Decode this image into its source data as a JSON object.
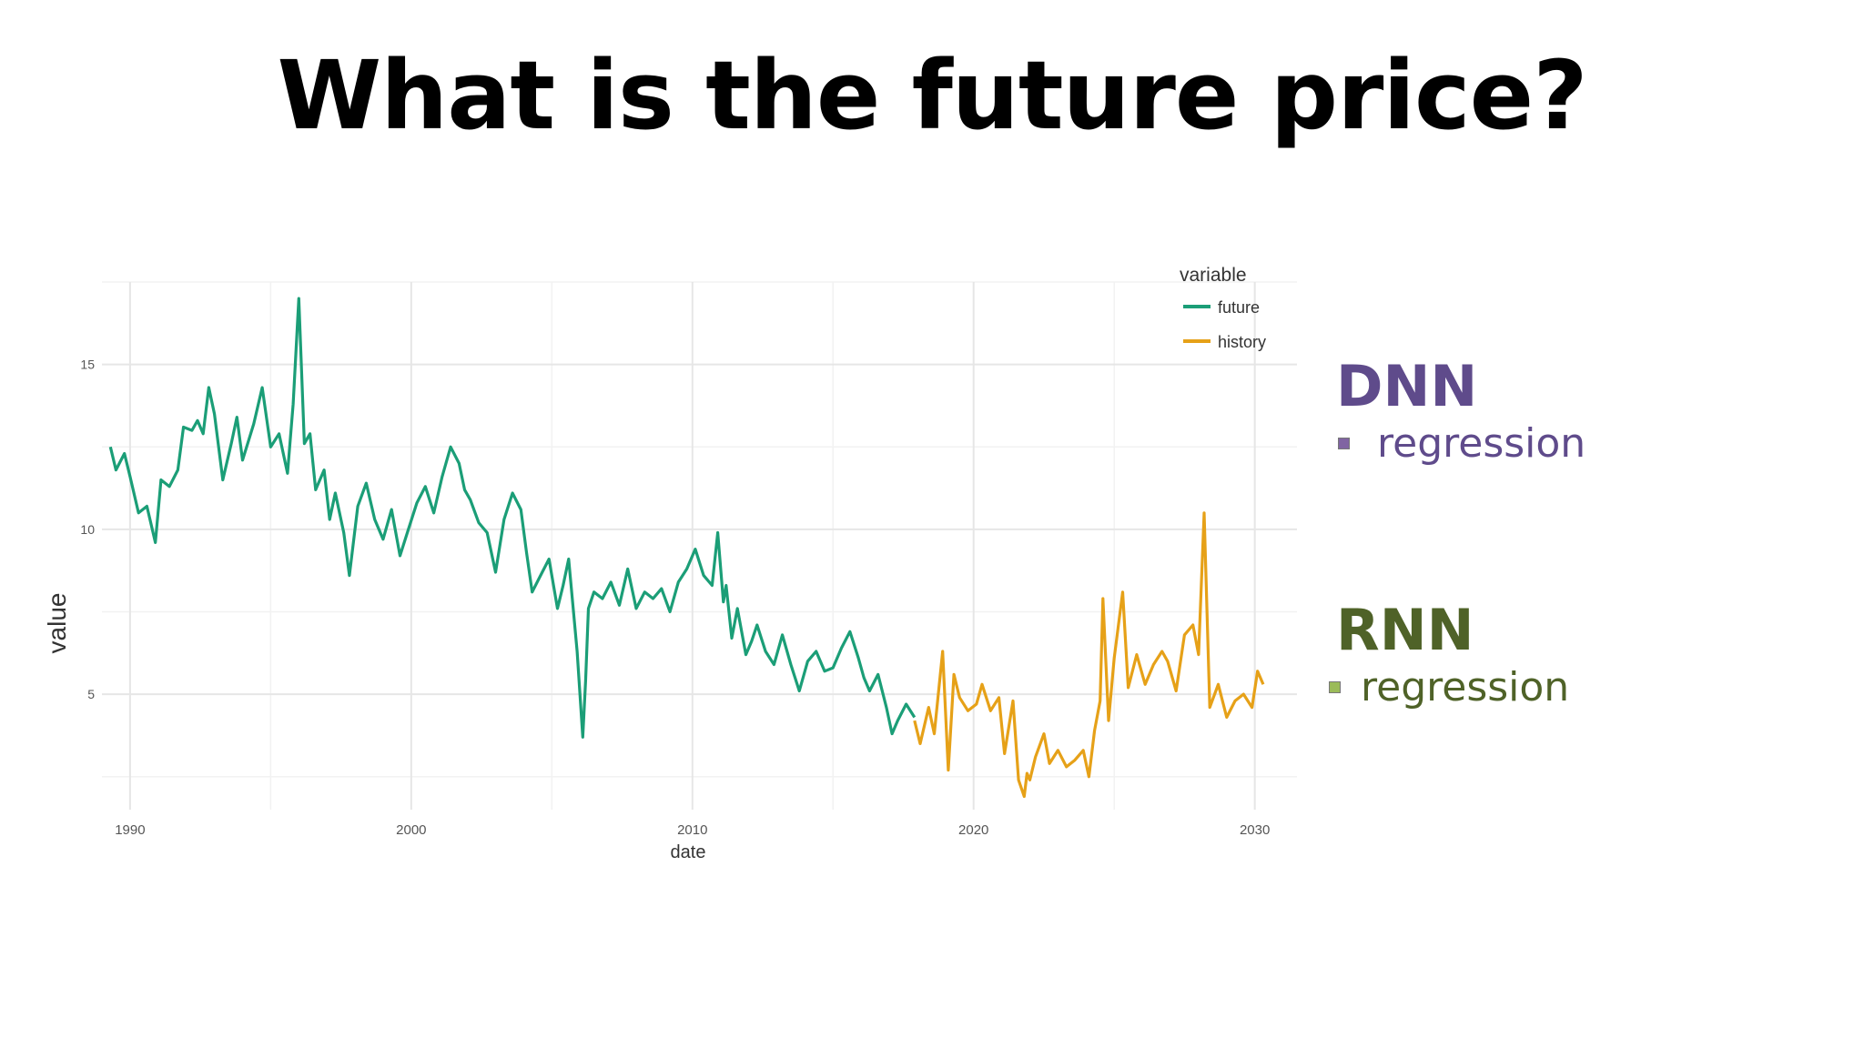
{
  "slide": {
    "title": "What is the future price?",
    "dnn_heading": "DNN",
    "dnn_item": "regression",
    "rnn_heading": "RNN",
    "rnn_item": "regression"
  },
  "colors": {
    "dnn": "#5f4b8b",
    "dnn_bullet": "#8064a2",
    "rnn": "#4f6228",
    "rnn_bullet": "#9bbb59"
  },
  "chart_data": {
    "type": "line",
    "xlabel": "date",
    "ylabel": "value",
    "xlim": [
      1989,
      2031.5
    ],
    "ylim": [
      1.5,
      17.5
    ],
    "xticks": [
      1990,
      2000,
      2010,
      2020,
      2030
    ],
    "yticks": [
      5,
      10,
      15
    ],
    "grid": true,
    "legend": {
      "title": "variable",
      "position": "top-right",
      "entries": [
        "future",
        "history"
      ]
    },
    "series": [
      {
        "name": "future",
        "color": "#1b9e77",
        "x": [
          1989.3,
          1989.5,
          1989.8,
          1990.0,
          1990.3,
          1990.6,
          1990.9,
          1991.1,
          1991.4,
          1991.7,
          1991.9,
          1992.2,
          1992.4,
          1992.6,
          1992.8,
          1993.0,
          1993.3,
          1993.6,
          1993.8,
          1994.0,
          1994.4,
          1994.7,
          1995.0,
          1995.3,
          1995.6,
          1995.8,
          1996.0,
          1996.2,
          1996.4,
          1996.6,
          1996.9,
          1997.1,
          1997.3,
          1997.6,
          1997.8,
          1998.1,
          1998.4,
          1998.7,
          1999.0,
          1999.3,
          1999.6,
          1999.9,
          2000.2,
          2000.5,
          2000.8,
          2001.1,
          2001.4,
          2001.7,
          2001.9,
          2002.1,
          2002.4,
          2002.7,
          2003.0,
          2003.3,
          2003.6,
          2003.9,
          2004.1,
          2004.3,
          2004.6,
          2004.9,
          2005.2,
          2005.4,
          2005.6,
          2005.9,
          2006.1,
          2006.2,
          2006.3,
          2006.5,
          2006.8,
          2007.1,
          2007.4,
          2007.7,
          2008.0,
          2008.3,
          2008.6,
          2008.9,
          2009.2,
          2009.5,
          2009.8,
          2010.1,
          2010.4,
          2010.7,
          2010.9,
          2011.1,
          2011.2,
          2011.4,
          2011.6,
          2011.9,
          2012.1,
          2012.3,
          2012.6,
          2012.9,
          2013.2,
          2013.5,
          2013.8,
          2014.1,
          2014.4,
          2014.7,
          2015.0,
          2015.3,
          2015.6,
          2015.9,
          2016.1,
          2016.3,
          2016.6,
          2016.9,
          2017.1,
          2017.3,
          2017.6,
          2017.9
        ],
        "y": [
          12.5,
          11.8,
          12.3,
          11.6,
          10.5,
          10.7,
          9.6,
          11.5,
          11.3,
          11.8,
          13.1,
          13.0,
          13.3,
          12.9,
          14.3,
          13.5,
          11.5,
          12.6,
          13.4,
          12.1,
          13.2,
          14.3,
          12.5,
          12.9,
          11.7,
          13.8,
          17.0,
          12.6,
          12.9,
          11.2,
          11.8,
          10.3,
          11.1,
          9.9,
          8.6,
          10.7,
          11.4,
          10.3,
          9.7,
          10.6,
          9.2,
          10.0,
          10.8,
          11.3,
          10.5,
          11.6,
          12.5,
          12.0,
          11.2,
          10.9,
          10.2,
          9.9,
          8.7,
          10.3,
          11.1,
          10.6,
          9.3,
          8.1,
          8.6,
          9.1,
          7.6,
          8.3,
          9.1,
          6.3,
          3.7,
          5.4,
          7.6,
          8.1,
          7.9,
          8.4,
          7.7,
          8.8,
          7.6,
          8.1,
          7.9,
          8.2,
          7.5,
          8.4,
          8.8,
          9.4,
          8.6,
          8.3,
          9.9,
          7.8,
          8.3,
          6.7,
          7.6,
          6.2,
          6.6,
          7.1,
          6.3,
          5.9,
          6.8,
          5.9,
          5.1,
          6.0,
          6.3,
          5.7,
          5.8,
          6.4,
          6.9,
          6.1,
          5.5,
          5.1,
          5.6,
          4.6,
          3.8,
          4.2,
          4.7,
          4.3
        ]
      },
      {
        "name": "history",
        "color": "#e6a118",
        "x": [
          2017.9,
          2018.1,
          2018.4,
          2018.6,
          2018.9,
          2019.1,
          2019.3,
          2019.5,
          2019.8,
          2020.1,
          2020.3,
          2020.6,
          2020.9,
          2021.1,
          2021.4,
          2021.6,
          2021.8,
          2021.9,
          2022.0,
          2022.2,
          2022.5,
          2022.7,
          2023.0,
          2023.3,
          2023.6,
          2023.9,
          2024.1,
          2024.3,
          2024.5,
          2024.6,
          2024.8,
          2025.0,
          2025.3,
          2025.5,
          2025.8,
          2026.1,
          2026.4,
          2026.7,
          2026.9,
          2027.2,
          2027.5,
          2027.8,
          2028.0,
          2028.2,
          2028.4,
          2028.7,
          2029.0,
          2029.3,
          2029.6,
          2029.9,
          2030.1,
          2030.3
        ],
        "y": [
          4.2,
          3.5,
          4.6,
          3.8,
          6.3,
          2.7,
          5.6,
          4.9,
          4.5,
          4.7,
          5.3,
          4.5,
          4.9,
          3.2,
          4.8,
          2.4,
          1.9,
          2.6,
          2.4,
          3.1,
          3.8,
          2.9,
          3.3,
          2.8,
          3.0,
          3.3,
          2.5,
          3.9,
          4.8,
          7.9,
          4.2,
          6.1,
          8.1,
          5.2,
          6.2,
          5.3,
          5.9,
          6.3,
          6.0,
          5.1,
          6.8,
          7.1,
          6.2,
          10.5,
          4.6,
          5.3,
          4.3,
          4.8,
          5.0,
          4.6,
          5.7,
          5.3
        ]
      }
    ]
  }
}
